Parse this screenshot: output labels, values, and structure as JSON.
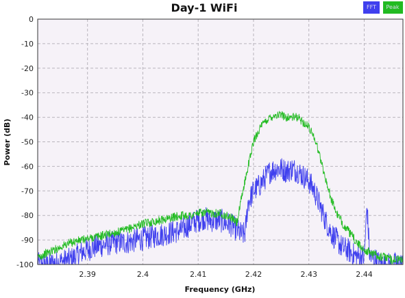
{
  "chart_data": {
    "type": "line",
    "title": "Day-1 WiFi",
    "xlabel": "Frequency (GHz)",
    "ylabel": "Power (dB)",
    "xlim": [
      2.381,
      2.447
    ],
    "ylim": [
      -100,
      0
    ],
    "x_ticks": [
      2.39,
      2.4,
      2.41,
      2.42,
      2.43,
      2.44
    ],
    "y_ticks": [
      0,
      -10,
      -20,
      -30,
      -40,
      -50,
      -60,
      -70,
      -80,
      -90,
      -100
    ],
    "grid": true,
    "legend_position": "top-right",
    "series": [
      {
        "name": "FFT",
        "color": "#4040ee",
        "x": [
          2.381,
          2.383,
          2.385,
          2.387,
          2.389,
          2.391,
          2.393,
          2.395,
          2.397,
          2.399,
          2.401,
          2.403,
          2.405,
          2.407,
          2.409,
          2.41,
          2.411,
          2.412,
          2.413,
          2.414,
          2.415,
          2.416,
          2.417,
          2.418,
          2.4185,
          2.419,
          2.42,
          2.421,
          2.422,
          2.423,
          2.424,
          2.425,
          2.426,
          2.427,
          2.428,
          2.429,
          2.43,
          2.431,
          2.432,
          2.433,
          2.434,
          2.435,
          2.436,
          2.437,
          2.438,
          2.439,
          2.44,
          2.4405,
          2.441,
          2.442,
          2.443,
          2.444,
          2.445,
          2.447
        ],
        "values": [
          -100,
          -100,
          -99,
          -98,
          -95,
          -93,
          -92,
          -91,
          -91,
          -90,
          -89,
          -88,
          -87,
          -86,
          -83,
          -82,
          -81,
          -82,
          -82,
          -82,
          -83,
          -84,
          -86,
          -88,
          -87,
          -75,
          -70,
          -68,
          -65,
          -62,
          -61,
          -61,
          -62,
          -61,
          -62,
          -64,
          -66,
          -70,
          -76,
          -82,
          -87,
          -90,
          -93,
          -94,
          -96,
          -97,
          -97,
          -76,
          -97,
          -98,
          -100,
          -100,
          -100,
          -100
        ]
      },
      {
        "name": "Peak",
        "color": "#22bb22",
        "x": [
          2.381,
          2.383,
          2.385,
          2.387,
          2.389,
          2.391,
          2.393,
          2.395,
          2.397,
          2.399,
          2.401,
          2.403,
          2.405,
          2.407,
          2.409,
          2.41,
          2.411,
          2.412,
          2.413,
          2.414,
          2.415,
          2.416,
          2.417,
          2.418,
          2.419,
          2.42,
          2.421,
          2.422,
          2.423,
          2.424,
          2.425,
          2.426,
          2.427,
          2.428,
          2.429,
          2.43,
          2.431,
          2.432,
          2.433,
          2.434,
          2.435,
          2.436,
          2.437,
          2.438,
          2.439,
          2.44,
          2.441,
          2.442,
          2.443,
          2.444,
          2.445,
          2.447
        ],
        "values": [
          -97,
          -95,
          -93,
          -91,
          -90,
          -89,
          -88,
          -87,
          -86,
          -84,
          -83,
          -82,
          -81,
          -80,
          -80,
          -79,
          -79,
          -79,
          -79,
          -79,
          -80,
          -81,
          -83,
          -71,
          -60,
          -50,
          -45,
          -42,
          -40,
          -39,
          -39,
          -40,
          -40,
          -40,
          -42,
          -44,
          -48,
          -56,
          -65,
          -73,
          -79,
          -83,
          -86,
          -89,
          -92,
          -94,
          -95,
          -96,
          -97,
          -97,
          -98,
          -98
        ]
      }
    ]
  }
}
